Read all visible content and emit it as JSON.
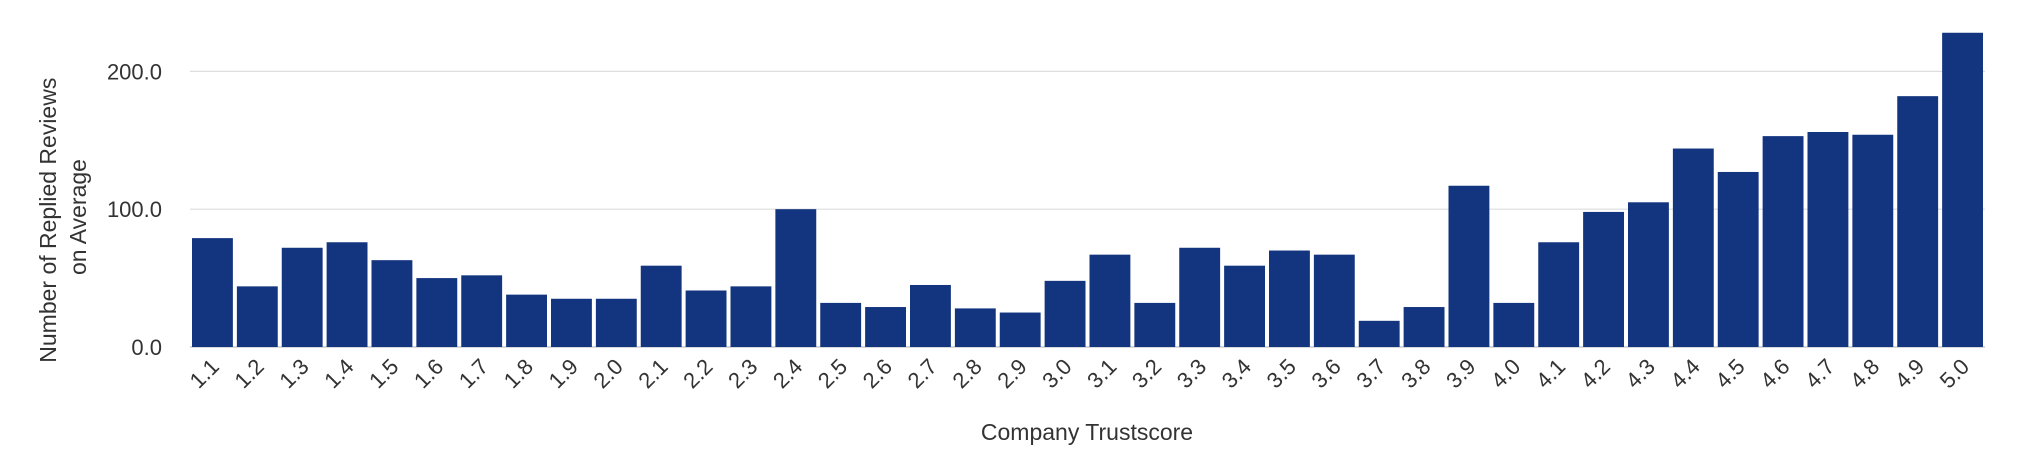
{
  "chart_data": {
    "type": "bar",
    "title": "",
    "xlabel": "Company Trustscore",
    "ylabel_lines": [
      "Number of Replied Reviews",
      "on Average"
    ],
    "ylim": [
      0,
      230
    ],
    "yticks": [
      0,
      100,
      200
    ],
    "ytick_labels": [
      "0.0",
      "100.0",
      "200.0"
    ],
    "grid": true,
    "categories": [
      "1.1",
      "1.2",
      "1.3",
      "1.4",
      "1.5",
      "1.6",
      "1.7",
      "1.8",
      "1.9",
      "2.0",
      "2.1",
      "2.2",
      "2.3",
      "2.4",
      "2.5",
      "2.6",
      "2.7",
      "2.8",
      "2.9",
      "3.0",
      "3.1",
      "3.2",
      "3.3",
      "3.4",
      "3.5",
      "3.6",
      "3.7",
      "3.8",
      "3.9",
      "4.0",
      "4.1",
      "4.2",
      "4.3",
      "4.4",
      "4.5",
      "4.6",
      "4.7",
      "4.8",
      "4.9",
      "5.0"
    ],
    "values": [
      79,
      44,
      72,
      76,
      63,
      50,
      52,
      38,
      35,
      35,
      59,
      41,
      44,
      100,
      32,
      29,
      45,
      28,
      25,
      48,
      67,
      32,
      72,
      59,
      70,
      67,
      19,
      29,
      117,
      32,
      76,
      98,
      105,
      144,
      127,
      153,
      156,
      154,
      182,
      228
    ],
    "bar_color": "#13357f"
  }
}
